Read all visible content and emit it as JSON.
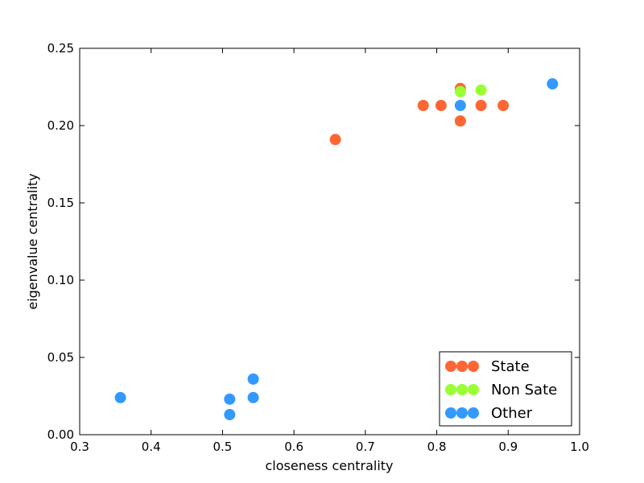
{
  "chart_data": {
    "type": "scatter",
    "title": "",
    "xlabel": "closeness centrality",
    "ylabel": "eigenvalue centrality",
    "xlim": [
      0.3,
      1.0
    ],
    "ylim": [
      0.0,
      0.25
    ],
    "xticks": [
      "0.3",
      "0.4",
      "0.5",
      "0.6",
      "0.7",
      "0.8",
      "0.9",
      "1.0"
    ],
    "yticks": [
      "0.00",
      "0.05",
      "0.10",
      "0.15",
      "0.20",
      "0.25"
    ],
    "grid": false,
    "legend_position": "bottom-right",
    "series": [
      {
        "name": "State",
        "color": "#ff6633",
        "points": [
          [
            0.658,
            0.191
          ],
          [
            0.781,
            0.213
          ],
          [
            0.806,
            0.213
          ],
          [
            0.833,
            0.224
          ],
          [
            0.833,
            0.203
          ],
          [
            0.862,
            0.213
          ],
          [
            0.893,
            0.213
          ]
        ]
      },
      {
        "name": "Non Sate",
        "color": "#99ff33",
        "points": [
          [
            0.833,
            0.222
          ],
          [
            0.862,
            0.223
          ]
        ]
      },
      {
        "name": "Other",
        "color": "#3399ff",
        "points": [
          [
            0.357,
            0.024
          ],
          [
            0.51,
            0.023
          ],
          [
            0.51,
            0.013
          ],
          [
            0.543,
            0.036
          ],
          [
            0.543,
            0.024
          ],
          [
            0.833,
            0.213
          ],
          [
            0.962,
            0.227
          ]
        ]
      }
    ]
  }
}
